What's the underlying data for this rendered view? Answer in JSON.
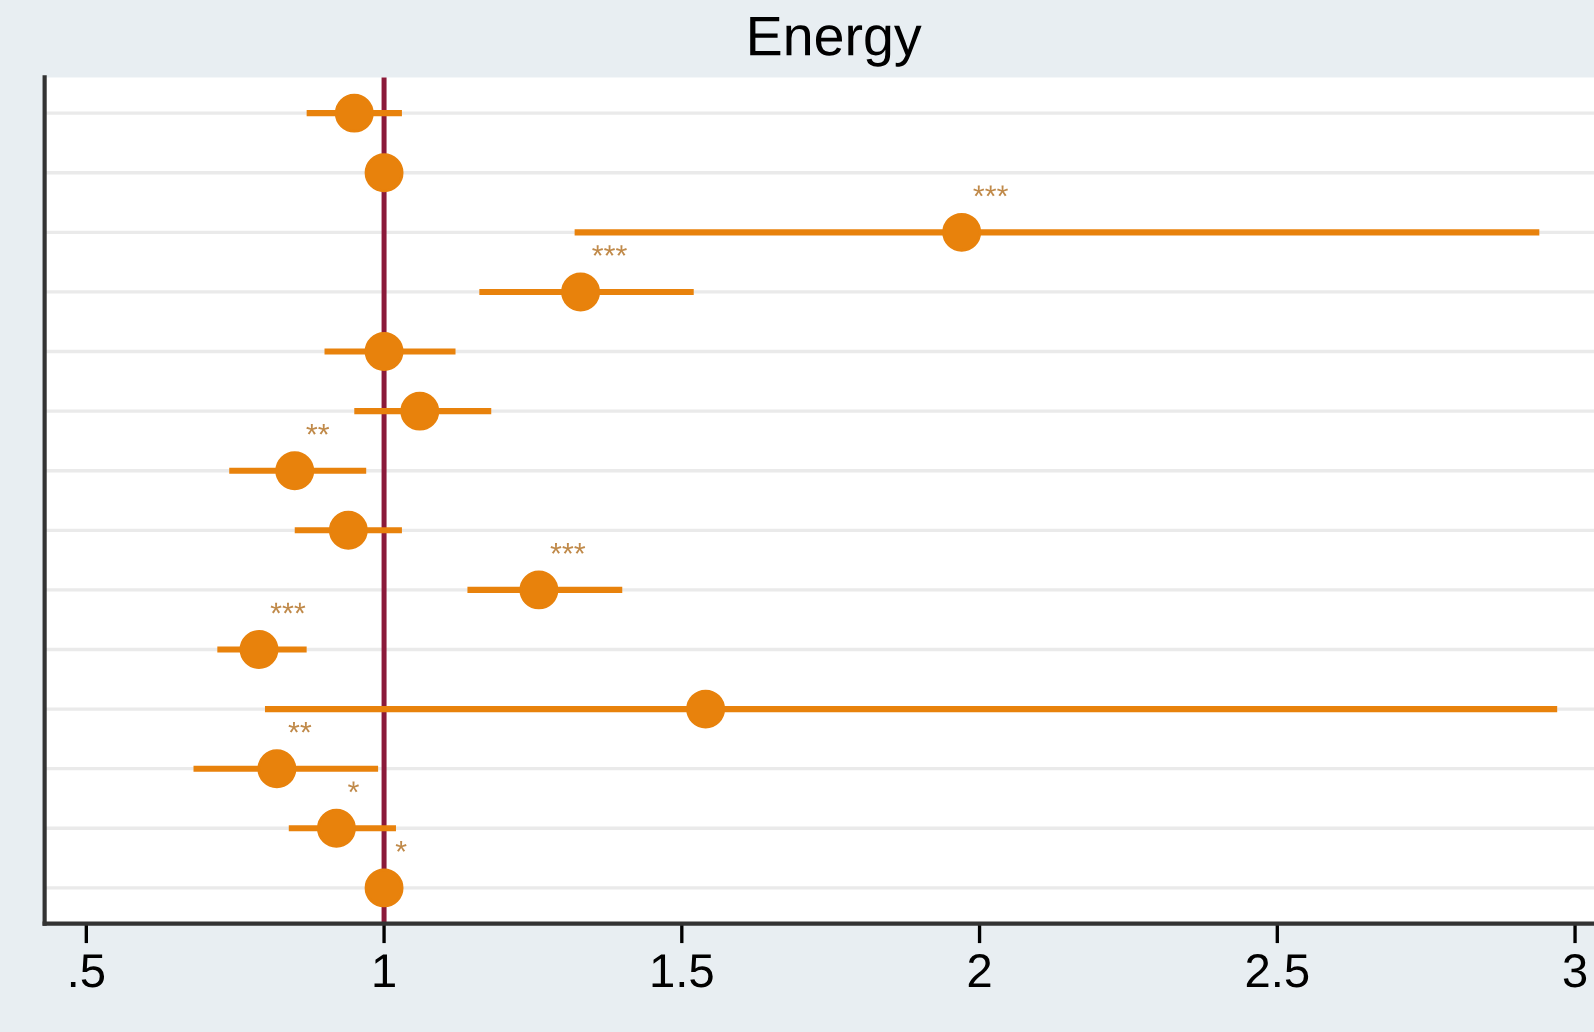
{
  "chart_data": {
    "type": "scatter",
    "title": "Energy",
    "orientation": "horizontal",
    "categories": [
      null,
      null,
      null,
      null,
      null,
      null,
      null,
      null,
      null,
      null,
      null,
      null,
      null,
      null
    ],
    "series": [
      {
        "color": "#e8820c",
        "values": [
          0.95,
          1.0,
          1.97,
          1.33,
          1.0,
          1.06,
          0.85,
          0.94,
          1.26,
          0.79,
          1.54,
          0.82,
          0.92,
          1.0
        ],
        "errors": [
          [
            0.87,
            1.03
          ],
          null,
          [
            1.32,
            2.94
          ],
          [
            1.16,
            1.52
          ],
          [
            0.9,
            1.12
          ],
          [
            0.95,
            1.18
          ],
          [
            0.74,
            0.97
          ],
          [
            0.85,
            1.03
          ],
          [
            1.14,
            1.4
          ],
          [
            0.72,
            0.87
          ],
          [
            0.8,
            2.97
          ],
          [
            0.68,
            0.99
          ],
          [
            0.84,
            1.02
          ],
          null
        ],
        "value_labels": [
          null,
          null,
          "***",
          "***",
          null,
          null,
          "**",
          null,
          "***",
          "***",
          null,
          "**",
          "*",
          "*"
        ]
      }
    ],
    "xlim": [
      0.43,
      3.08
    ],
    "xticks": [
      {
        "value": 0.5,
        "label": ".5"
      },
      1,
      1.5,
      2,
      2.5,
      3
    ],
    "ref_lines": [
      {
        "axis": "x",
        "value": 1,
        "color": "#8b1a3a"
      }
    ],
    "grid": "y",
    "marker": "circle",
    "tick_labels": "x"
  }
}
